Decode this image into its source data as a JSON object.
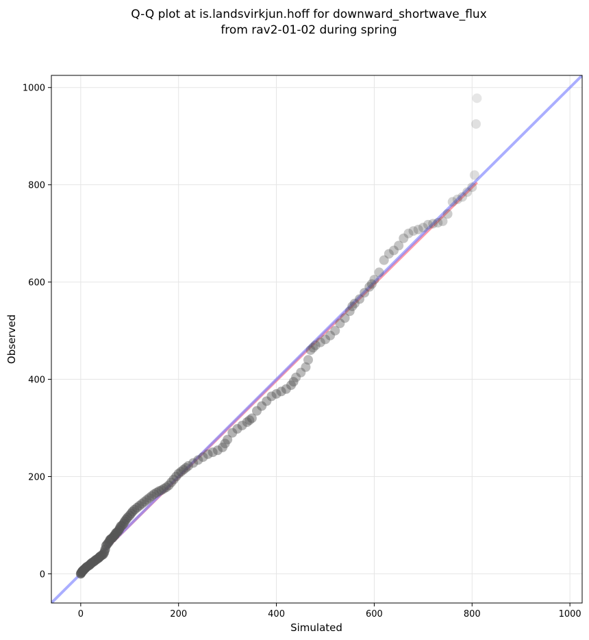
{
  "chart_data": {
    "type": "scatter",
    "title": "Q-Q plot at is.landsvirkjun.hoff for downward_shortwave_flux",
    "subtitle": "from rav2-01-02 during spring",
    "xlabel": "Simulated",
    "ylabel": "Observed",
    "xlim": [
      -60,
      1025
    ],
    "ylim": [
      -60,
      1025
    ],
    "xticks": [
      0,
      200,
      400,
      600,
      800,
      1000
    ],
    "yticks": [
      0,
      200,
      400,
      600,
      800,
      1000
    ],
    "grid": true,
    "colors": {
      "points": "#555555",
      "identity_line": "#7d82ff",
      "fit_line": "#ff6f7d",
      "grid": "#e5e5e5"
    },
    "identity_line": {
      "x": [
        -60,
        1025
      ],
      "y": [
        -60,
        1025
      ]
    },
    "fit_line": {
      "x": [
        0,
        810
      ],
      "y": [
        0,
        805
      ]
    },
    "series": [
      {
        "x": [
          0,
          1,
          2,
          3,
          4,
          5,
          6,
          8,
          10,
          12,
          15,
          18,
          20,
          22,
          25,
          28,
          30,
          33,
          36,
          38,
          40,
          43,
          46,
          48,
          50,
          52,
          55,
          58,
          60,
          62,
          65,
          68,
          70,
          72,
          75,
          78,
          80,
          82,
          85,
          88,
          90,
          93,
          96,
          100,
          103,
          106,
          110,
          115,
          120,
          125,
          130,
          135,
          140,
          145,
          150,
          155,
          160,
          165,
          170,
          175,
          180,
          185,
          190,
          195,
          200,
          205,
          210,
          215,
          220,
          230,
          240,
          250,
          260,
          270,
          280,
          290,
          295,
          300,
          310,
          320,
          330,
          340,
          345,
          350,
          360,
          370,
          380,
          390,
          400,
          410,
          420,
          430,
          435,
          440,
          450,
          460,
          465,
          470,
          475,
          480,
          490,
          500,
          510,
          520,
          530,
          540,
          550,
          555,
          560,
          570,
          580,
          590,
          595,
          600,
          610,
          620,
          630,
          640,
          650,
          660,
          670,
          680,
          690,
          700,
          710,
          720,
          730,
          740,
          750,
          760,
          770,
          780,
          790,
          800,
          805,
          808,
          810
        ],
        "y": [
          0,
          2,
          3,
          5,
          6,
          7,
          8,
          10,
          12,
          14,
          16,
          18,
          20,
          22,
          24,
          26,
          28,
          30,
          32,
          34,
          36,
          38,
          40,
          44,
          50,
          58,
          62,
          66,
          70,
          72,
          74,
          78,
          80,
          84,
          86,
          90,
          94,
          98,
          100,
          104,
          108,
          112,
          116,
          120,
          124,
          128,
          132,
          136,
          140,
          144,
          148,
          152,
          156,
          160,
          164,
          167,
          170,
          172,
          175,
          178,
          182,
          188,
          194,
          200,
          206,
          210,
          214,
          218,
          222,
          228,
          234,
          240,
          246,
          250,
          254,
          260,
          268,
          276,
          290,
          298,
          305,
          312,
          316,
          320,
          335,
          345,
          355,
          365,
          370,
          375,
          380,
          388,
          395,
          404,
          414,
          425,
          440,
          460,
          465,
          470,
          476,
          482,
          490,
          500,
          515,
          526,
          540,
          550,
          556,
          565,
          578,
          590,
          596,
          605,
          620,
          645,
          658,
          665,
          675,
          690,
          700,
          705,
          708,
          712,
          718,
          720,
          722,
          725,
          740,
          765,
          770,
          775,
          785,
          795,
          820,
          925,
          978
        ],
        "alpha": [
          0.7,
          0.7,
          0.7,
          0.7,
          0.7,
          0.7,
          0.7,
          0.7,
          0.7,
          0.7,
          0.7,
          0.7,
          0.7,
          0.7,
          0.7,
          0.7,
          0.7,
          0.7,
          0.7,
          0.7,
          0.7,
          0.7,
          0.7,
          0.7,
          0.7,
          0.7,
          0.7,
          0.7,
          0.7,
          0.7,
          0.7,
          0.7,
          0.7,
          0.7,
          0.7,
          0.7,
          0.6,
          0.6,
          0.6,
          0.6,
          0.6,
          0.6,
          0.6,
          0.55,
          0.55,
          0.55,
          0.55,
          0.55,
          0.55,
          0.5,
          0.5,
          0.5,
          0.5,
          0.5,
          0.5,
          0.5,
          0.5,
          0.5,
          0.5,
          0.5,
          0.5,
          0.5,
          0.5,
          0.5,
          0.5,
          0.5,
          0.5,
          0.5,
          0.45,
          0.45,
          0.45,
          0.45,
          0.45,
          0.45,
          0.45,
          0.45,
          0.45,
          0.45,
          0.45,
          0.45,
          0.45,
          0.45,
          0.45,
          0.45,
          0.45,
          0.45,
          0.45,
          0.45,
          0.45,
          0.45,
          0.45,
          0.45,
          0.45,
          0.4,
          0.4,
          0.4,
          0.4,
          0.4,
          0.4,
          0.4,
          0.4,
          0.4,
          0.4,
          0.4,
          0.4,
          0.4,
          0.4,
          0.4,
          0.4,
          0.4,
          0.4,
          0.4,
          0.4,
          0.35,
          0.35,
          0.35,
          0.35,
          0.35,
          0.35,
          0.35,
          0.3,
          0.3,
          0.3,
          0.3,
          0.3,
          0.3,
          0.3,
          0.3,
          0.3,
          0.25,
          0.25,
          0.25,
          0.25,
          0.25,
          0.2,
          0.18,
          0.15
        ]
      }
    ]
  }
}
